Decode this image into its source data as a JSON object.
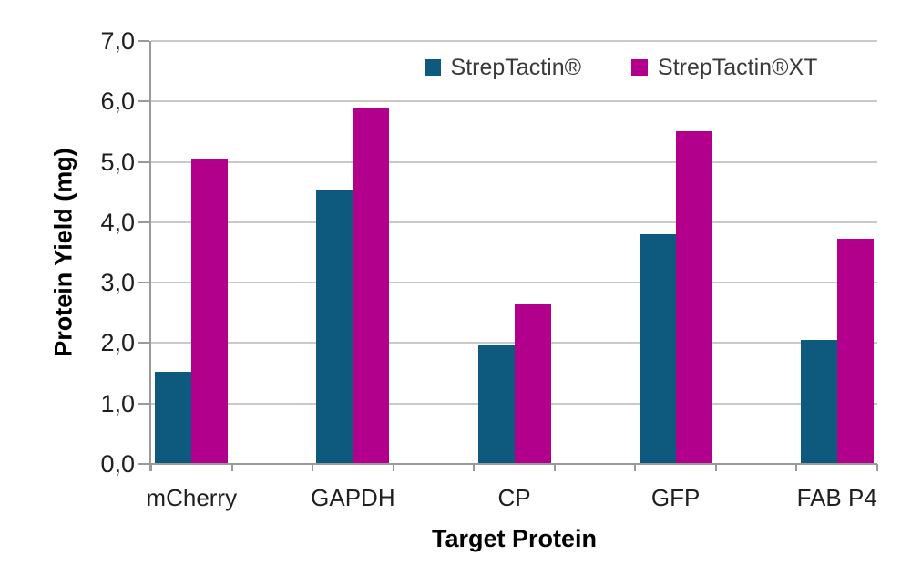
{
  "chart_data": {
    "type": "bar",
    "title": "",
    "xlabel": "Target Protein",
    "ylabel": "Protein Yield (mg)",
    "categories": [
      "mCherry",
      "GAPDH",
      "CP",
      "GFP",
      "FAB P4"
    ],
    "series": [
      {
        "name": "StrepTactin®",
        "color": "#0D5A7E",
        "values": [
          1.52,
          4.53,
          1.98,
          3.8,
          2.05
        ]
      },
      {
        "name": "StrepTactin®XT",
        "color": "#B2008C",
        "values": [
          5.06,
          5.88,
          2.66,
          5.5,
          3.73
        ]
      }
    ],
    "ylim": [
      0,
      7
    ],
    "ytick_step": 1.0,
    "ytick_labels": [
      "0,0",
      "1,0",
      "2,0",
      "3,0",
      "4,0",
      "5,0",
      "6,0",
      "7,0"
    ],
    "decimal_separator": ",",
    "grid": true,
    "legend_position": "top-center-inside",
    "colors": {
      "background": "#FFFFFF",
      "gridline": "#C9C9C9",
      "axis": "#9A9A9A",
      "tick_text": "#1F1F1F",
      "legend_text": "#3A3A3A"
    }
  }
}
